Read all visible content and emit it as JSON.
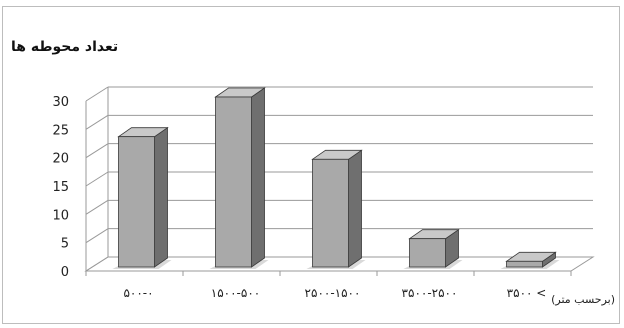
{
  "chart_data": {
    "type": "bar",
    "title": "تعداد محوطه ها",
    "xlabel": "(برحسب متر)",
    "ylabel": "",
    "categories": [
      "۵۰۰-۰",
      "۱۵۰۰-۵۰۰",
      "۲۵۰۰-۱۵۰۰",
      "۳۵۰۰-۲۵۰۰",
      "۳۵۰۰ <"
    ],
    "values": [
      23,
      30,
      19,
      5,
      1
    ],
    "ylim": [
      0,
      30
    ],
    "yticks": [
      "0",
      "5",
      "10",
      "15",
      "20",
      "25",
      "30"
    ],
    "grid": true,
    "legend": "none",
    "bar_color": "#a9a9a9",
    "bar_side_color": "#6f6f6f",
    "bar_top_color": "#c9c9c9"
  }
}
